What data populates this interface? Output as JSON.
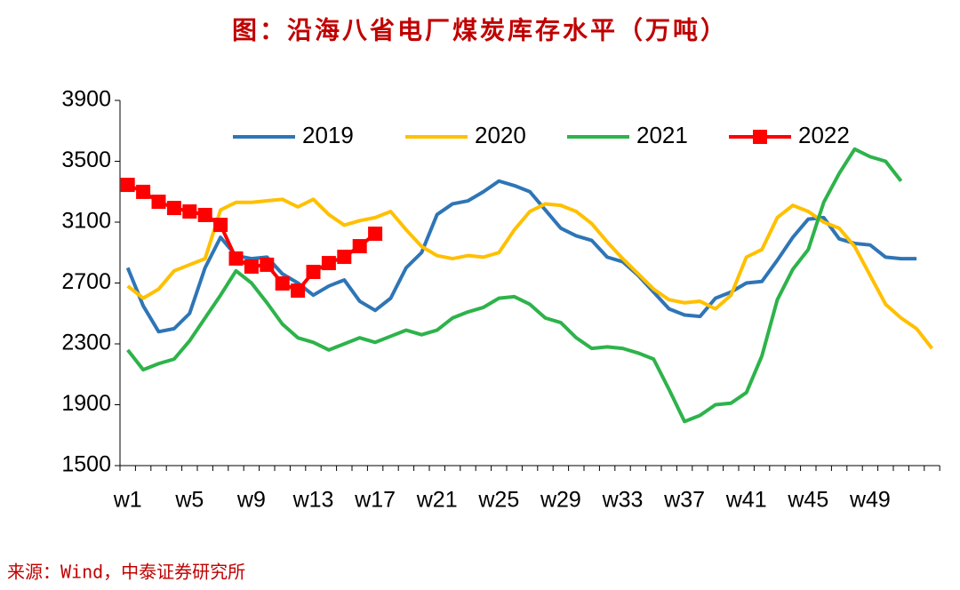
{
  "chart_data": {
    "type": "line",
    "title": "图：沿海八省电厂煤炭库存水平（万吨）",
    "source": "来源：Wind，中泰证券研究所",
    "categories": [
      "w1",
      null,
      null,
      null,
      "w5",
      null,
      null,
      null,
      "w9",
      null,
      null,
      null,
      "w13",
      null,
      null,
      null,
      "w17",
      null,
      null,
      null,
      "w21",
      null,
      null,
      null,
      "w25",
      null,
      null,
      null,
      "w29",
      null,
      null,
      null,
      "w33",
      null,
      null,
      null,
      "w37",
      null,
      null,
      null,
      "w41",
      null,
      null,
      null,
      "w45",
      null,
      null,
      null,
      "w49",
      null,
      null,
      null,
      null
    ],
    "ylim": [
      1500,
      3900
    ],
    "yticks": [
      1500,
      1900,
      2300,
      2700,
      3100,
      3500,
      3900
    ],
    "series": [
      {
        "name": "2019",
        "color": "#2e75b6",
        "values": [
          2800,
          2550,
          2380,
          2400,
          2500,
          2800,
          3000,
          2880,
          2860,
          2870,
          2760,
          2700,
          2620,
          2680,
          2720,
          2580,
          2520,
          2600,
          2800,
          2900,
          3150,
          3220,
          3240,
          3300,
          3370,
          3340,
          3300,
          3180,
          3060,
          3010,
          2980,
          2870,
          2840,
          2750,
          2640,
          2530,
          2490,
          2480,
          2600,
          2640,
          2700,
          2710,
          2850,
          3000,
          3120,
          3130,
          2990,
          2960,
          2950,
          2870,
          2860,
          2860,
          null
        ]
      },
      {
        "name": "2020",
        "color": "#ffc000",
        "values": [
          2680,
          2600,
          2660,
          2780,
          2820,
          2860,
          3180,
          3230,
          3230,
          3240,
          3250,
          3200,
          3250,
          3150,
          3080,
          3110,
          3130,
          3170,
          3050,
          2940,
          2880,
          2860,
          2880,
          2870,
          2900,
          3050,
          3170,
          3220,
          3210,
          3170,
          3090,
          2970,
          2860,
          2760,
          2660,
          2590,
          2570,
          2580,
          2530,
          2620,
          2870,
          2920,
          3130,
          3210,
          3170,
          3100,
          3060,
          2940,
          2750,
          2560,
          2470,
          2400,
          2270
        ]
      },
      {
        "name": "2021",
        "color": "#2db34a",
        "values": [
          2260,
          2130,
          2170,
          2200,
          2320,
          2470,
          2620,
          2780,
          2700,
          2570,
          2430,
          2340,
          2310,
          2260,
          2300,
          2340,
          2310,
          2350,
          2390,
          2360,
          2390,
          2470,
          2510,
          2540,
          2600,
          2610,
          2560,
          2470,
          2440,
          2340,
          2270,
          2280,
          2270,
          2240,
          2200,
          2000,
          1790,
          1830,
          1900,
          1910,
          1980,
          2220,
          2590,
          2790,
          2920,
          3230,
          3420,
          3580,
          3530,
          3500,
          3370,
          null,
          null
        ]
      },
      {
        "name": "2022",
        "color": "#ff0000",
        "marker": "square",
        "values": [
          3345,
          3299,
          3234,
          3193,
          3170,
          3147,
          3082,
          2861,
          2808,
          2820,
          2697,
          2650,
          2773,
          2831,
          2872,
          2942,
          3024,
          null,
          null,
          null,
          null,
          null,
          null,
          null,
          null,
          null,
          null,
          null,
          null,
          null,
          null,
          null,
          null,
          null,
          null,
          null,
          null,
          null,
          null,
          null,
          null,
          null,
          null,
          null,
          null,
          null,
          null,
          null,
          null,
          null,
          null,
          null,
          null
        ]
      }
    ]
  }
}
